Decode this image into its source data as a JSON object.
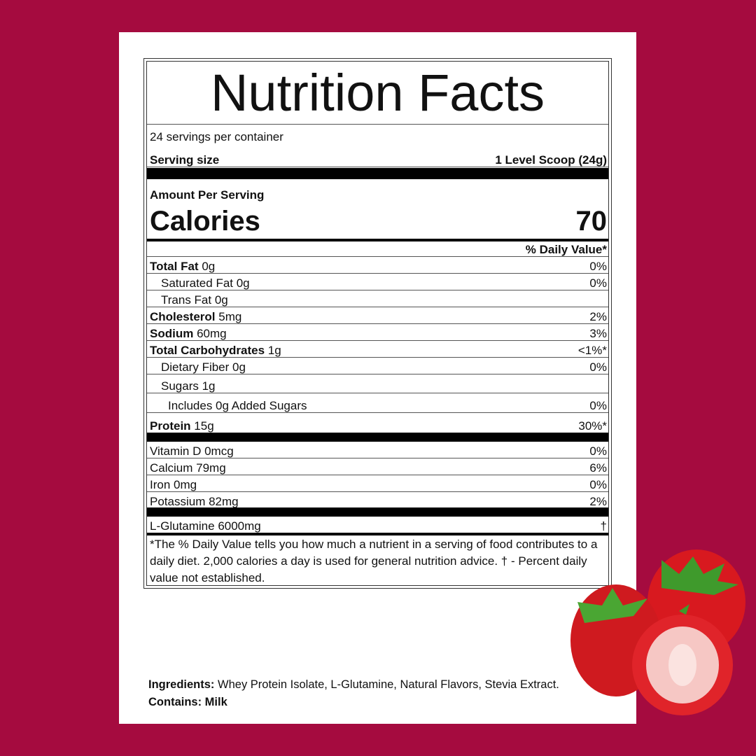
{
  "title": "Nutrition Facts",
  "servings_per_container": "24 servings per container",
  "serving_size_label": "Serving size",
  "serving_size_value": "1 Level Scoop (24g)",
  "amount_per_serving": "Amount Per Serving",
  "calories_label": "Calories",
  "calories_value": "70",
  "daily_value_header": "% Daily Value*",
  "nutrients": [
    {
      "name": "Total Fat",
      "amount": "0g",
      "dv": "0%"
    },
    {
      "name": "Saturated Fat 0g",
      "amount": "",
      "dv": "0%"
    },
    {
      "name": "Trans Fat 0g",
      "amount": "",
      "dv": ""
    },
    {
      "name": "Cholesterol",
      "amount": "5mg",
      "dv": "2%"
    },
    {
      "name": "Sodium",
      "amount": "60mg",
      "dv": "3%"
    },
    {
      "name": "Total Carbohydrates",
      "amount": "1g",
      "dv": "<1%*"
    },
    {
      "name": "Dietary Fiber 0g",
      "amount": "",
      "dv": "0%"
    },
    {
      "name": "Sugars 1g",
      "amount": "",
      "dv": ""
    },
    {
      "name": "Includes 0g Added Sugars",
      "amount": "",
      "dv": "0%"
    },
    {
      "name": "Protein",
      "amount": "15g",
      "dv": "30%*"
    }
  ],
  "vitamins": [
    {
      "name": "Vitamin D 0mcg",
      "dv": "0%"
    },
    {
      "name": "Calcium 79mg",
      "dv": "6%"
    },
    {
      "name": "Iron 0mg",
      "dv": "0%"
    },
    {
      "name": "Potassium 82mg",
      "dv": "2%"
    }
  ],
  "other": {
    "name": "L-Glutamine 6000mg",
    "dv": "†"
  },
  "footnote": "*The % Daily Value tells you how much a nutrient in a serving of food contributes to a daily diet.  2,000 calories a day is used for general nutrition advice.  † - Percent daily value not established.",
  "ingredients_label": "Ingredients:",
  "ingredients_text": " Whey Protein Isolate, L-Glutamine, Natural Flavors, Stevia Extract. ",
  "contains_label": "Contains: Milk",
  "colors": {
    "background": "#a50b3f",
    "strawberry": "#d8191f"
  }
}
